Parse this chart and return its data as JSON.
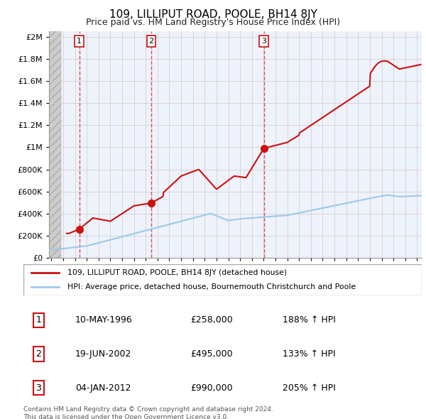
{
  "title": "109, LILLIPUT ROAD, POOLE, BH14 8JY",
  "subtitle": "Price paid vs. HM Land Registry's House Price Index (HPI)",
  "ylabel_ticks": [
    "£0",
    "£200K",
    "£400K",
    "£600K",
    "£800K",
    "£1M",
    "£1.2M",
    "£1.4M",
    "£1.6M",
    "£1.8M",
    "£2M"
  ],
  "ytick_values": [
    0,
    200000,
    400000,
    600000,
    800000,
    1000000,
    1200000,
    1400000,
    1600000,
    1800000,
    2000000
  ],
  "ylim": [
    0,
    2050000
  ],
  "xlim_start": 1993.8,
  "xlim_end": 2025.4,
  "sale_dates": [
    1996.36,
    2002.47,
    2012.01
  ],
  "sale_prices": [
    258000,
    495000,
    990000
  ],
  "sale_labels": [
    "1",
    "2",
    "3"
  ],
  "hpi_color": "#9EC8E8",
  "price_color": "#CC1111",
  "dashed_color": "#DD3333",
  "legend_line1": "109, LILLIPUT ROAD, POOLE, BH14 8JY (detached house)",
  "legend_line2": "HPI: Average price, detached house, Bournemouth Christchurch and Poole",
  "table_rows": [
    [
      "1",
      "10-MAY-1996",
      "£258,000",
      "188% ↑ HPI"
    ],
    [
      "2",
      "19-JUN-2002",
      "£495,000",
      "133% ↑ HPI"
    ],
    [
      "3",
      "04-JAN-2012",
      "£990,000",
      "205% ↑ HPI"
    ]
  ],
  "footer": "Contains HM Land Registry data © Crown copyright and database right 2024.\nThis data is licensed under the Open Government Licence v3.0.",
  "grid_color": "#CCCCCC",
  "plot_bg": "#EEF2FA",
  "hatch_color": "#D8D8D8"
}
